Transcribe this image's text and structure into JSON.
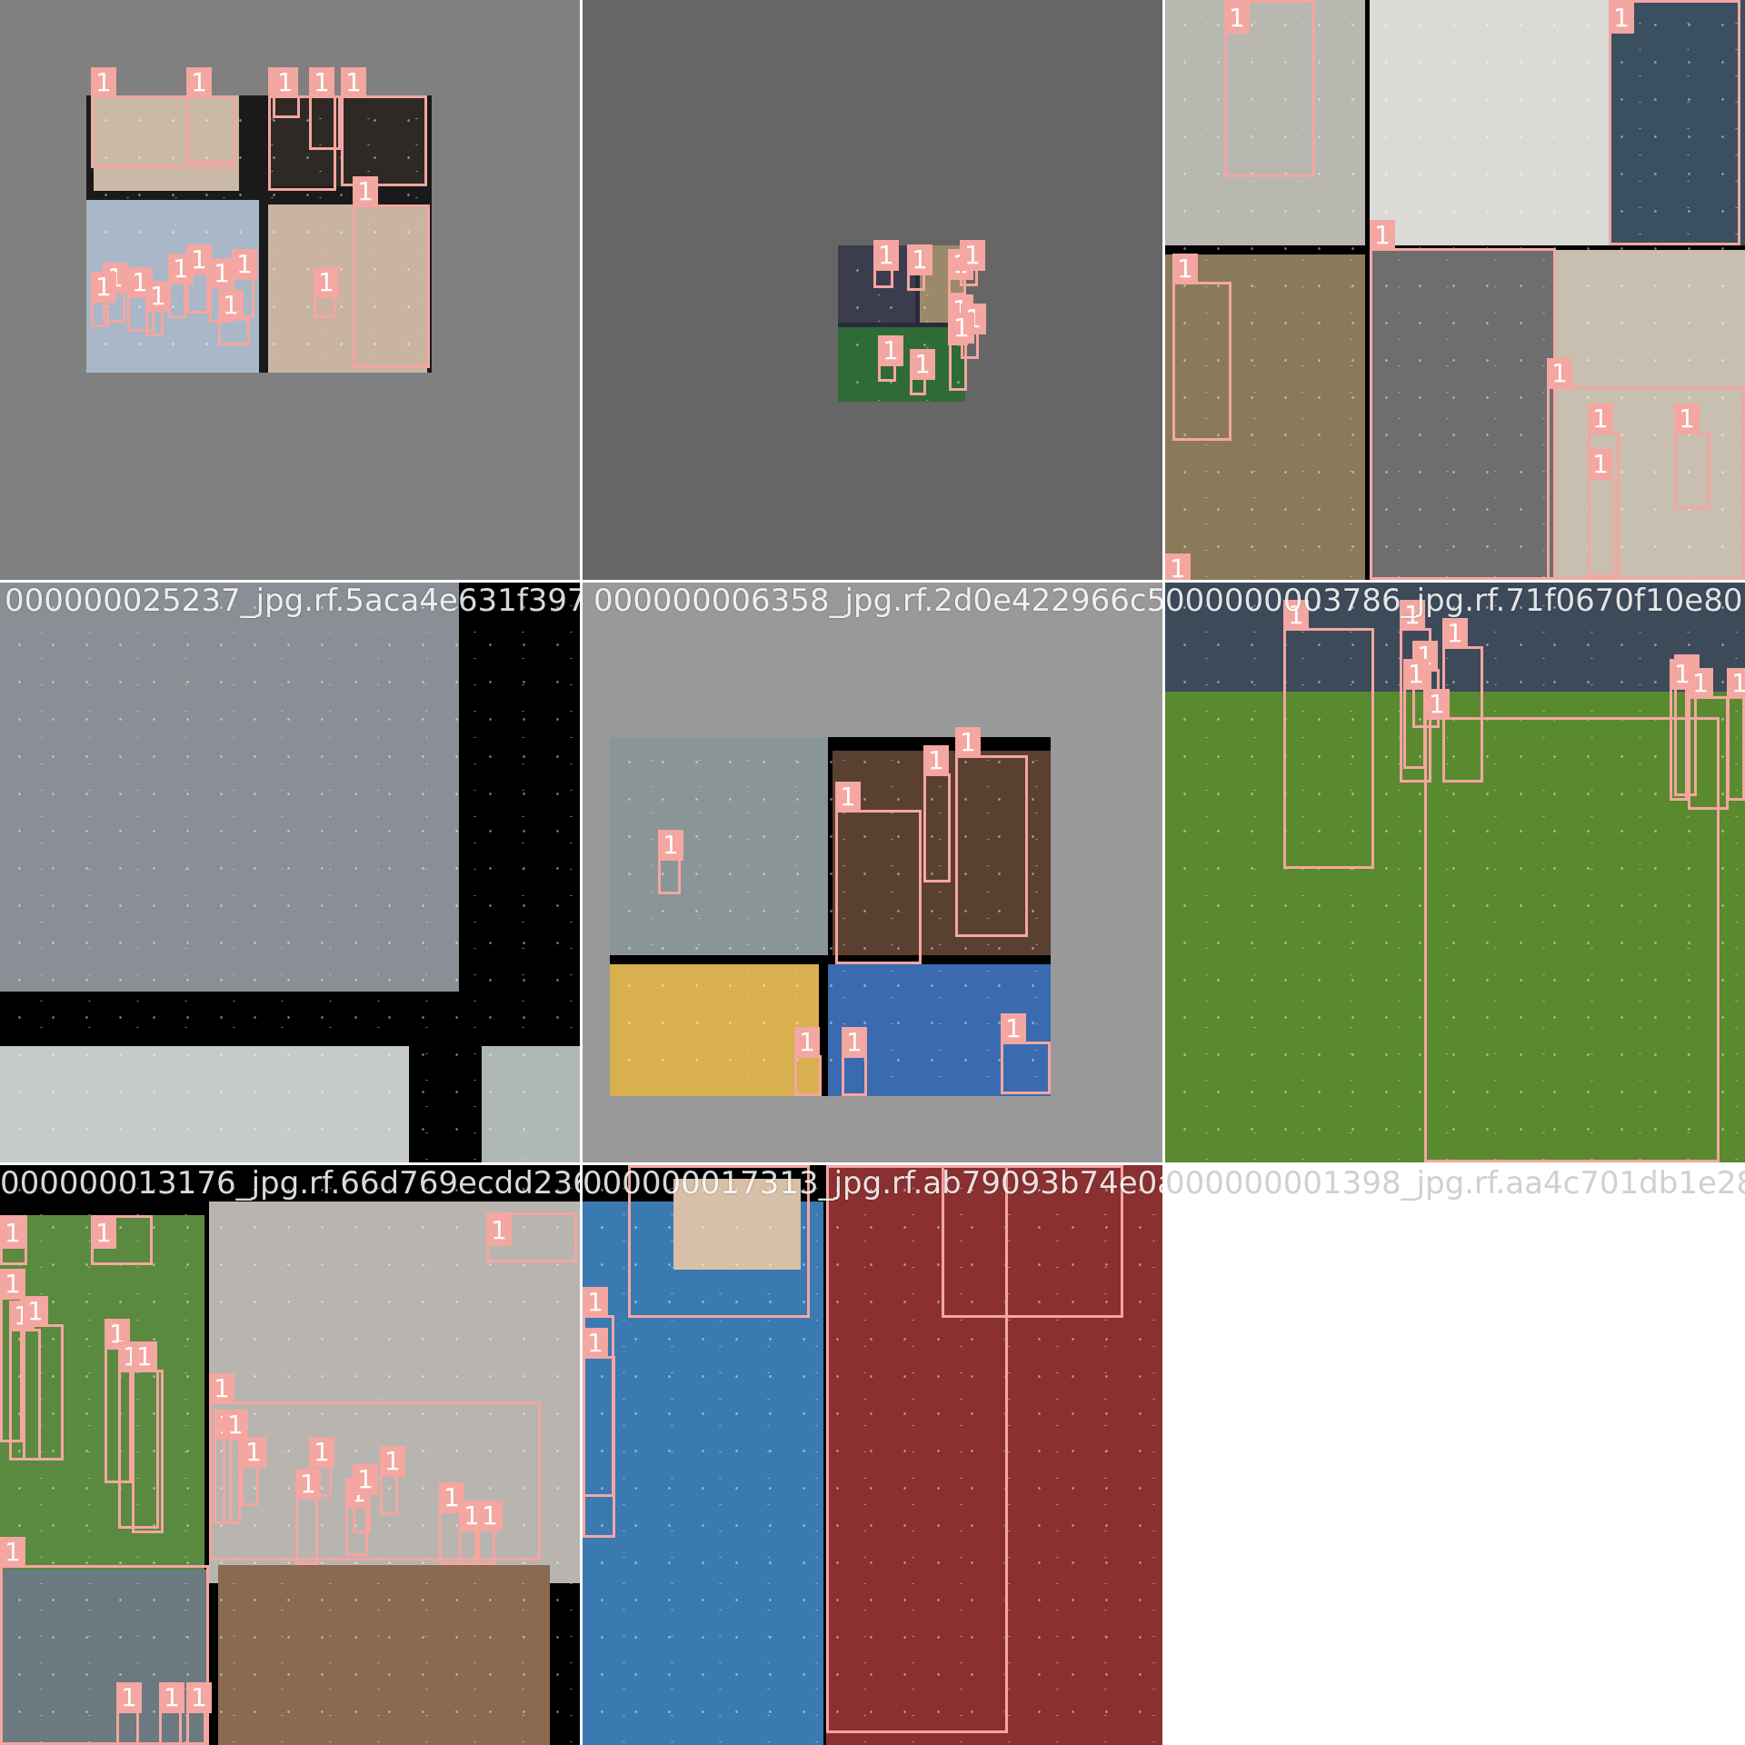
{
  "grid": {
    "tiles": [
      {
        "id": "tile-1",
        "background": "#7f7f7f",
        "filename": "",
        "boxes": [
          "1",
          "1",
          "1",
          "1",
          "1",
          "1",
          "1",
          "1",
          "1",
          "1",
          "1",
          "1",
          "1",
          "1",
          "1",
          "1",
          "1"
        ]
      },
      {
        "id": "tile-2",
        "background": "#666666",
        "filename": "",
        "boxes": [
          "1",
          "1",
          "1",
          "1",
          "1",
          "1",
          "1",
          "1",
          "1"
        ]
      },
      {
        "id": "tile-3",
        "background": "#000000",
        "filename": "",
        "boxes": [
          "1",
          "1",
          "1",
          "1",
          "1",
          "1",
          "1",
          "1",
          "1"
        ]
      },
      {
        "id": "tile-4",
        "background": "#000000",
        "filename": "000000025237_jpg.rf.5aca4e631f397f6050f",
        "boxes": []
      },
      {
        "id": "tile-5",
        "background": "#999999",
        "filename": "000000006358_jpg.rf.2d0e422966c59",
        "boxes": [
          "1",
          "1",
          "1",
          "1",
          "1",
          "1",
          "1"
        ]
      },
      {
        "id": "tile-6",
        "background": "#4b6b2a",
        "filename": "000000003786_jpg.rf.71f0670f10e801",
        "boxes": [
          "1",
          "1",
          "1",
          "1",
          "1",
          "1",
          "1",
          "1",
          "1",
          "1"
        ]
      },
      {
        "id": "tile-7",
        "background": "#000000",
        "filename": "000000013176_jpg.rf.66d769ecdd2366",
        "boxes": [
          "1",
          "1",
          "1",
          "1",
          "1",
          "1",
          "1",
          "1",
          "1",
          "1",
          "1",
          "1",
          "1",
          "1",
          "1",
          "1",
          "1",
          "1",
          "1",
          "1",
          "1",
          "1",
          "1",
          "1",
          "1"
        ]
      },
      {
        "id": "tile-8",
        "background": "#000000",
        "filename": "000000017313_jpg.rf.ab79093b74e0a6",
        "boxes": [
          "1",
          "1",
          "1",
          "1",
          "1"
        ]
      },
      {
        "id": "tile-9",
        "background": "#ffffff",
        "filename": "000000001398_jpg.rf.aa4c701db1e28",
        "boxes": []
      }
    ]
  },
  "colors": {
    "box": "#f4a6a0",
    "label_text": "#ffffff"
  }
}
